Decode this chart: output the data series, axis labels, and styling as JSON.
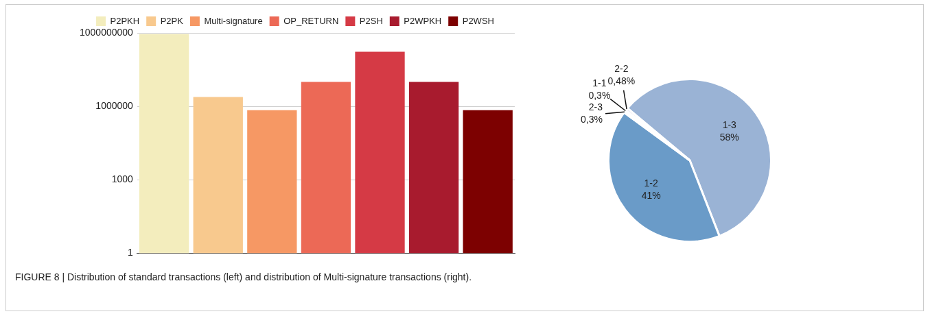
{
  "chart_data": [
    {
      "type": "bar",
      "categories": [
        null
      ],
      "series": [
        {
          "name": "P2PKH",
          "color": "#f3edbd",
          "values": [
            900000000
          ]
        },
        {
          "name": "P2PK",
          "color": "#f8c98e",
          "values": [
            2400000
          ]
        },
        {
          "name": "Multi-signature",
          "color": "#f69864",
          "values": [
            700000
          ]
        },
        {
          "name": "OP_RETURN",
          "color": "#ec6956",
          "values": [
            10000000
          ]
        },
        {
          "name": "P2SH",
          "color": "#d53a45",
          "values": [
            170000000
          ]
        },
        {
          "name": "P2WPKH",
          "color": "#a81b2e",
          "values": [
            10000000
          ]
        },
        {
          "name": "P2WSH",
          "color": "#7d0101",
          "values": [
            700000
          ]
        }
      ],
      "log": "y",
      "ylim": [
        1,
        1000000000
      ],
      "yticks": [
        1,
        1000,
        1000000,
        1000000000
      ],
      "grid": "y",
      "legend": "top",
      "tick_labels": "y",
      "annotations": [
        "FIGURE 8 | Distribution of standard transactions (left) and distribution of Multi-signature transactions (right)."
      ]
    },
    {
      "type": "pie",
      "categories": [
        "1-3",
        "1-2",
        "2-3",
        "1-1",
        "2-2"
      ],
      "values": [
        58,
        41,
        0.3,
        0.3,
        0.48
      ],
      "colors": [
        "#9ab3d5",
        "#6a9bc8",
        "#3c7ba8",
        "#c6d5ea",
        "#dcd6e8"
      ],
      "value_labels": [
        "58%",
        "41%",
        "0,3%",
        "0,3%",
        "0,48%"
      ],
      "legend": false
    }
  ]
}
